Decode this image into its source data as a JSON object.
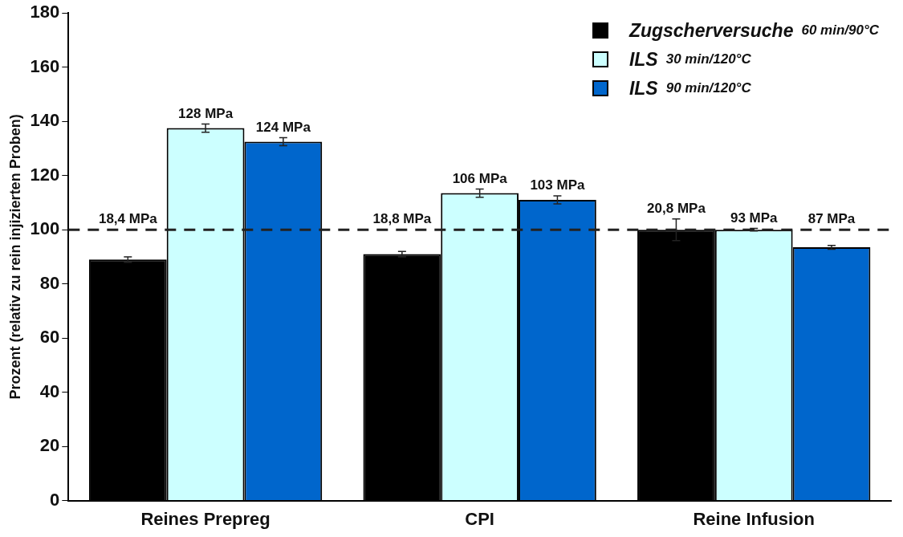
{
  "chart_data": {
    "type": "bar",
    "categories": [
      "Reines Prepreg",
      "CPI",
      "Reine Infusion"
    ],
    "ylabel": "Prozent (relativ zu rein injizierten Proben)",
    "ylim": [
      0,
      180
    ],
    "yticks": [
      0,
      20,
      40,
      60,
      80,
      100,
      120,
      140,
      160,
      180
    ],
    "grid": false,
    "legend": "top right",
    "series": [
      {
        "name": "Zugscherversuche 60 min/90°C",
        "color": "#000000",
        "values": [
          89,
          91,
          100
        ],
        "errors": [
          1,
          1,
          4
        ]
      },
      {
        "name": "ILS 30 min/120°C",
        "color": "#ccffff",
        "values": [
          137.5,
          113.5,
          100
        ],
        "errors": [
          1.5,
          1.5,
          0.5
        ]
      },
      {
        "name": "ILS 90 min/120°C",
        "color": "#0066cc",
        "values": [
          132.5,
          111,
          93.5
        ],
        "errors": [
          1.5,
          1.5,
          0.7
        ]
      }
    ],
    "annotations": [
      "18,4 MPa",
      "128 MPa",
      "124 MPa",
      "18,8 MPa",
      "106 MPa",
      "103 MPa",
      "20,8 MPa",
      "93 MPa",
      "87 MPa"
    ],
    "ref_lines": [
      {
        "axis": "y",
        "value": 100,
        "line_style": "dashed",
        "color": "#222222"
      }
    ]
  }
}
